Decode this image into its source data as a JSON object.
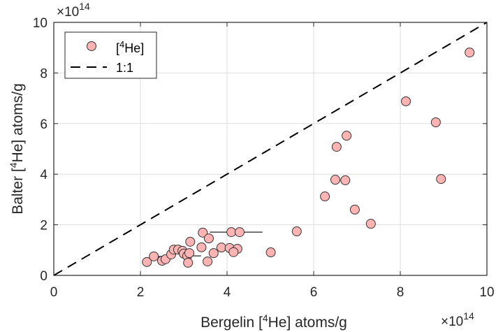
{
  "chart_data": {
    "type": "scatter",
    "title": "",
    "xlabel": {
      "prefix": "Bergelin [",
      "sup": "4",
      "suffix": "He] atoms/g"
    },
    "ylabel": {
      "prefix": "Balter [",
      "sup": "4",
      "suffix": "He] atoms/g"
    },
    "xlim": [
      0,
      10
    ],
    "ylim": [
      0,
      10
    ],
    "xticks": [
      "0",
      "2",
      "4",
      "6",
      "8",
      "10"
    ],
    "yticks": [
      "0",
      "2",
      "4",
      "6",
      "8",
      "10"
    ],
    "xtick_values": [
      0,
      2,
      4,
      6,
      8,
      10
    ],
    "ytick_values": [
      0,
      2,
      4,
      6,
      8,
      10
    ],
    "x_exponent": {
      "base": "×10",
      "exp": "14"
    },
    "y_exponent": {
      "base": "×10",
      "exp": "14"
    },
    "grid": true,
    "legend": {
      "placement": "top-left",
      "entries": [
        {
          "label_prefix": "[",
          "label_sup": "4",
          "label_suffix": "He]",
          "marker": "circle"
        },
        {
          "label": "1:1",
          "marker": "dashed-line"
        }
      ]
    },
    "reference_line": {
      "name": "1:1",
      "x": [
        0,
        10
      ],
      "y": [
        0,
        10
      ]
    },
    "series": [
      {
        "name": "[4He]",
        "color": "#ffb3b3",
        "edge": "#333333",
        "points": [
          {
            "x": 2.15,
            "y": 0.53
          },
          {
            "x": 2.31,
            "y": 0.75,
            "xerr": [
              2.31,
              2.78
            ]
          },
          {
            "x": 2.5,
            "y": 0.58
          },
          {
            "x": 2.58,
            "y": 0.64
          },
          {
            "x": 2.71,
            "y": 0.83
          },
          {
            "x": 2.77,
            "y": 1.02
          },
          {
            "x": 2.87,
            "y": 1.02
          },
          {
            "x": 2.97,
            "y": 0.97
          },
          {
            "x": 3.0,
            "y": 0.86
          },
          {
            "x": 3.08,
            "y": 0.77,
            "xerr": [
              3.05,
              3.4
            ]
          },
          {
            "x": 3.13,
            "y": 0.88
          },
          {
            "x": 3.1,
            "y": 0.5
          },
          {
            "x": 3.15,
            "y": 1.33
          },
          {
            "x": 3.41,
            "y": 1.11
          },
          {
            "x": 3.44,
            "y": 1.69
          },
          {
            "x": 3.58,
            "y": 1.46
          },
          {
            "x": 3.55,
            "y": 0.55
          },
          {
            "x": 3.69,
            "y": 0.88
          },
          {
            "x": 3.87,
            "y": 1.1
          },
          {
            "x": 4.1,
            "y": 1.71,
            "xerr": [
              3.6,
              4.82
            ]
          },
          {
            "x": 4.29,
            "y": 1.71
          },
          {
            "x": 4.06,
            "y": 1.08
          },
          {
            "x": 4.24,
            "y": 1.05
          },
          {
            "x": 4.15,
            "y": 0.92
          },
          {
            "x": 5.01,
            "y": 0.91
          },
          {
            "x": 5.61,
            "y": 1.74
          },
          {
            "x": 6.26,
            "y": 3.12
          },
          {
            "x": 6.5,
            "y": 3.78
          },
          {
            "x": 6.73,
            "y": 3.76
          },
          {
            "x": 6.95,
            "y": 2.6
          },
          {
            "x": 7.32,
            "y": 2.04
          },
          {
            "x": 6.53,
            "y": 5.08
          },
          {
            "x": 6.76,
            "y": 5.52
          },
          {
            "x": 8.13,
            "y": 6.88
          },
          {
            "x": 8.82,
            "y": 6.05
          },
          {
            "x": 8.94,
            "y": 3.81
          },
          {
            "x": 9.6,
            "y": 8.81
          }
        ]
      }
    ]
  }
}
